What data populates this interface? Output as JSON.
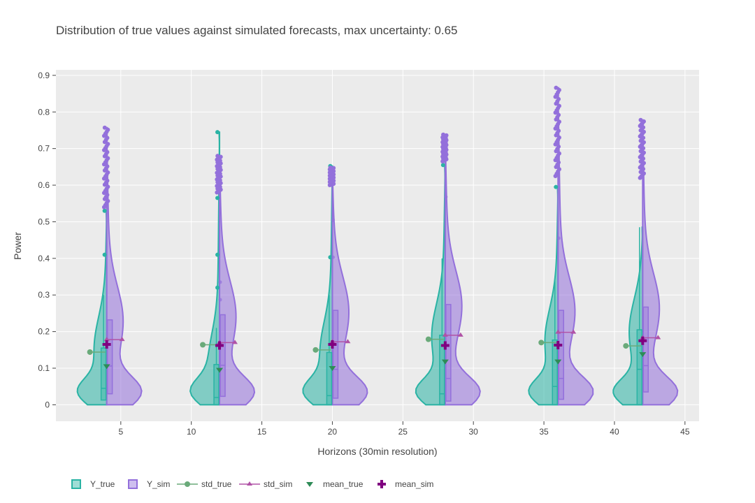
{
  "chart_data": {
    "type": "violin",
    "title": "Distribution of true values against simulated forecasts, max uncertainty: 0.65",
    "xlabel": "Horizons (30min resolution)",
    "ylabel": "Power",
    "xlim": [
      0.4,
      46
    ],
    "ylim": [
      -0.045,
      0.915
    ],
    "xticks": [
      5,
      10,
      15,
      20,
      25,
      30,
      35,
      40,
      45
    ],
    "yticks": [
      0,
      0.1,
      0.2,
      0.3,
      0.4,
      0.5,
      0.6,
      0.7,
      0.8,
      0.9
    ],
    "grid": true,
    "legend_position": "bottom",
    "colors": {
      "Y_true": "#2ab3a4",
      "Y_sim": "#9370db",
      "std_true": "#6aaa7a",
      "std_sim": "#b052a6",
      "mean_true": "#2e8b57",
      "mean_sim": "#800080"
    },
    "legend": [
      "Y_true",
      "Y_sim",
      "std_true",
      "std_sim",
      "mean_true",
      "mean_sim"
    ],
    "horizons": [
      {
        "x": 4,
        "true": {
          "min": 0,
          "q1": 0.013,
          "median": 0.045,
          "q3": 0.155,
          "max": 0.53,
          "upper_fence": 0.3,
          "outliers": [
            0.41,
            0.53
          ]
        },
        "sim": {
          "min": 0,
          "q1": 0.03,
          "median": 0.106,
          "q3": 0.232,
          "max": 0.757,
          "outliers_range": [
            0.54,
            0.757
          ]
        },
        "std_true": 0.144,
        "std_sim": 0.178,
        "mean_true": 0.105,
        "mean_sim": 0.165
      },
      {
        "x": 12,
        "true": {
          "min": 0,
          "q1": 0.0,
          "median": 0.02,
          "q3": 0.11,
          "max": 0.745,
          "upper_fence": 0.21,
          "outliers": [
            0.32,
            0.41,
            0.565,
            0.745
          ]
        },
        "sim": {
          "min": 0,
          "q1": 0.023,
          "median": 0.108,
          "q3": 0.246,
          "max": 0.68,
          "outliers_range": [
            0.58,
            0.68
          ],
          "extra": [
            0.287,
            0.335
          ]
        },
        "std_true": 0.164,
        "std_sim": 0.17,
        "mean_true": 0.095,
        "mean_sim": 0.162
      },
      {
        "x": 20,
        "true": {
          "min": 0,
          "q1": 0.0,
          "median": 0.025,
          "q3": 0.143,
          "max": 0.652,
          "upper_fence": 0.3,
          "outliers": [
            0.403,
            0.652
          ]
        },
        "sim": {
          "min": 0,
          "q1": 0.018,
          "median": 0.097,
          "q3": 0.258,
          "max": 0.648,
          "outliers_range": [
            0.6,
            0.648
          ],
          "extra": [
            0.403,
            0.505
          ]
        },
        "std_true": 0.15,
        "std_sim": 0.172,
        "mean_true": 0.1,
        "mean_sim": 0.165
      },
      {
        "x": 28,
        "true": {
          "min": 0,
          "q1": 0.0,
          "median": 0.03,
          "q3": 0.19,
          "max": 0.655,
          "upper_fence": 0.4,
          "outliers": [
            0.655
          ]
        },
        "sim": {
          "min": 0,
          "q1": 0.01,
          "median": 0.072,
          "q3": 0.274,
          "max": 0.738,
          "outliers_range": [
            0.665,
            0.738
          ],
          "extra": [
            0.568
          ]
        },
        "std_true": 0.179,
        "std_sim": 0.19,
        "mean_true": 0.118,
        "mean_sim": 0.162
      },
      {
        "x": 36,
        "true": {
          "min": 0,
          "q1": 0.0,
          "median": 0.05,
          "q3": 0.177,
          "max": 0.595,
          "upper_fence": 0.35,
          "outliers": [
            0.595
          ]
        },
        "sim": {
          "min": 0,
          "q1": 0.015,
          "median": 0.072,
          "q3": 0.258,
          "max": 0.866,
          "outliers_range": [
            0.625,
            0.866
          ],
          "extra": [
            0.455
          ]
        },
        "std_true": 0.17,
        "std_sim": 0.198,
        "mean_true": 0.118,
        "mean_sim": 0.163
      },
      {
        "x": 42,
        "true": {
          "min": 0,
          "q1": 0.0,
          "median": 0.097,
          "q3": 0.205,
          "max": 0.485,
          "upper_fence": 0.485,
          "outliers": []
        },
        "sim": {
          "min": 0,
          "q1": 0.035,
          "median": 0.107,
          "q3": 0.267,
          "max": 0.778,
          "outliers_range": [
            0.62,
            0.778
          ]
        },
        "std_true": 0.161,
        "std_sim": 0.183,
        "mean_true": 0.138,
        "mean_sim": 0.175
      }
    ]
  }
}
